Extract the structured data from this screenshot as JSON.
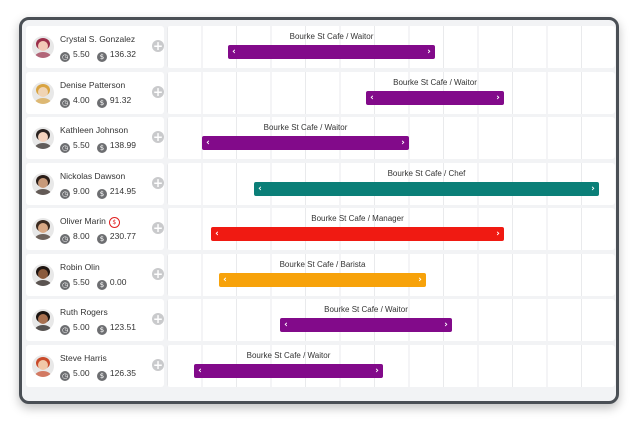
{
  "colors": {
    "waitor": "#820a8a",
    "chef": "#0b7f78",
    "manager": "#f01a12",
    "barista": "#f7a20a",
    "alert": "#e02020"
  },
  "icons": {
    "hours": "clock-icon",
    "cost": "dollar-icon",
    "add": "plus-icon",
    "handle_left": "chevron-left-icon",
    "handle_right": "chevron-right-icon"
  },
  "employees": [
    {
      "name": "Crystal S. Gonzalez",
      "hours": "5.50",
      "cost": "136.32",
      "alert": false,
      "shift": {
        "label": "Bourke St Cafe / Waitor",
        "role": "waitor"
      }
    },
    {
      "name": "Denise Patterson",
      "hours": "4.00",
      "cost": "91.32",
      "alert": false,
      "shift": {
        "label": "Bourke St Cafe / Waitor",
        "role": "waitor"
      }
    },
    {
      "name": "Kathleen Johnson",
      "hours": "5.50",
      "cost": "138.99",
      "alert": false,
      "shift": {
        "label": "Bourke St Cafe / Waitor",
        "role": "waitor"
      }
    },
    {
      "name": "Nickolas Dawson",
      "hours": "9.00",
      "cost": "214.95",
      "alert": false,
      "shift": {
        "label": "Bourke St Cafe / Chef",
        "role": "chef"
      }
    },
    {
      "name": "Oliver Marin",
      "hours": "8.00",
      "cost": "230.77",
      "alert": true,
      "shift": {
        "label": "Bourke St Cafe / Manager",
        "role": "manager"
      }
    },
    {
      "name": "Robin Olin",
      "hours": "5.50",
      "cost": "0.00",
      "alert": false,
      "shift": {
        "label": "Bourke St Cafe / Barista",
        "role": "barista"
      }
    },
    {
      "name": "Ruth Rogers",
      "hours": "5.00",
      "cost": "123.51",
      "alert": false,
      "shift": {
        "label": "Bourke St Cafe / Waitor",
        "role": "waitor"
      }
    },
    {
      "name": "Steve Harris",
      "hours": "5.00",
      "cost": "126.35",
      "alert": false,
      "shift": {
        "label": "Bourke St Cafe / Waitor",
        "role": "waitor"
      }
    }
  ]
}
